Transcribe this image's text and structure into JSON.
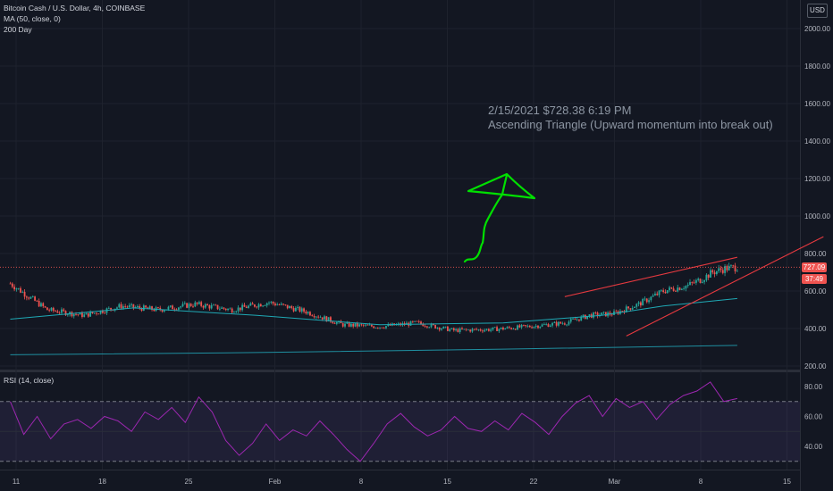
{
  "header": {
    "symbol": "Bitcoin Cash / U.S. Dollar, 4h, COINBASE",
    "indicator1": "MA (50, close, 0)",
    "indicator2": "200 Day",
    "rsi_label": "RSI (14, close)"
  },
  "currency_button": "USD",
  "last_price": "727.09",
  "countdown": "37:49",
  "annotation": {
    "line1": "2/15/2021 $728.38 6:19 PM",
    "line2": "Ascending Triangle (Upward momentum into break out)"
  },
  "colors": {
    "background": "#131722",
    "up": "#26a69a",
    "down": "#ef5350",
    "ma50": "#1fa9b5",
    "ma200": "#1f8fa0",
    "rsi": "#9c27b0",
    "trendline": "#e5393f",
    "drawing": "#00e000"
  },
  "chart_data": [
    {
      "type": "candlestick",
      "title": "Bitcoin Cash / U.S. Dollar, 4h, COINBASE",
      "ylim": [
        180,
        2150
      ],
      "y_ticks": [
        "2000.00",
        "1800.00",
        "1600.00",
        "1400.00",
        "1200.00",
        "1000.00",
        "800.00",
        "600.00",
        "400.00",
        "200.00"
      ],
      "x_ticks": [
        "11",
        "18",
        "25",
        "Feb",
        "8",
        "15",
        "22",
        "Mar",
        "8",
        "15"
      ],
      "close_path": [
        [
          0,
          640
        ],
        [
          3,
          500
        ],
        [
          6,
          470
        ],
        [
          9,
          520
        ],
        [
          12,
          500
        ],
        [
          15,
          530
        ],
        [
          18,
          500
        ],
        [
          21,
          540
        ],
        [
          24,
          490
        ],
        [
          27,
          420
        ],
        [
          30,
          410
        ],
        [
          33,
          430
        ],
        [
          36,
          390
        ],
        [
          39,
          395
        ],
        [
          42,
          410
        ],
        [
          45,
          430
        ],
        [
          47,
          470
        ],
        [
          49,
          480
        ],
        [
          51,
          530
        ],
        [
          53,
          600
        ],
        [
          55,
          630
        ],
        [
          56,
          660
        ],
        [
          57,
          700
        ],
        [
          58,
          720
        ],
        [
          59,
          727
        ]
      ],
      "series": [
        {
          "name": "MA (50, close, 0)",
          "values": [
            [
              0,
              450
            ],
            [
              10,
              510
            ],
            [
              20,
              470
            ],
            [
              30,
              420
            ],
            [
              40,
              430
            ],
            [
              48,
              470
            ],
            [
              53,
              520
            ],
            [
              59,
              560
            ]
          ]
        },
        {
          "name": "200 Day",
          "values": [
            [
              0,
              260
            ],
            [
              20,
              272
            ],
            [
              40,
              290
            ],
            [
              59,
              310
            ]
          ]
        }
      ],
      "trendlines": [
        {
          "from": [
            45,
            570
          ],
          "to": [
            59,
            780
          ]
        },
        {
          "from": [
            50,
            360
          ],
          "to": [
            66,
            890
          ]
        }
      ]
    },
    {
      "type": "line",
      "title": "RSI (14, close)",
      "ylim": [
        24,
        88
      ],
      "y_ticks": [
        "80.00",
        "60.00",
        "40.00"
      ],
      "bands": [
        30,
        70
      ],
      "values": [
        [
          0,
          70
        ],
        [
          1,
          48
        ],
        [
          2,
          60
        ],
        [
          3,
          45
        ],
        [
          4,
          55
        ],
        [
          5,
          58
        ],
        [
          6,
          52
        ],
        [
          7,
          60
        ],
        [
          8,
          57
        ],
        [
          9,
          50
        ],
        [
          10,
          63
        ],
        [
          11,
          58
        ],
        [
          12,
          66
        ],
        [
          13,
          56
        ],
        [
          14,
          73
        ],
        [
          15,
          63
        ],
        [
          16,
          44
        ],
        [
          17,
          34
        ],
        [
          18,
          42
        ],
        [
          19,
          55
        ],
        [
          20,
          44
        ],
        [
          21,
          51
        ],
        [
          22,
          47
        ],
        [
          23,
          57
        ],
        [
          24,
          48
        ],
        [
          25,
          38
        ],
        [
          26,
          30
        ],
        [
          27,
          42
        ],
        [
          28,
          55
        ],
        [
          29,
          62
        ],
        [
          30,
          53
        ],
        [
          31,
          47
        ],
        [
          32,
          51
        ],
        [
          33,
          60
        ],
        [
          34,
          52
        ],
        [
          35,
          50
        ],
        [
          36,
          57
        ],
        [
          37,
          51
        ],
        [
          38,
          62
        ],
        [
          39,
          56
        ],
        [
          40,
          48
        ],
        [
          41,
          60
        ],
        [
          42,
          69
        ],
        [
          43,
          74
        ],
        [
          44,
          60
        ],
        [
          45,
          72
        ],
        [
          46,
          66
        ],
        [
          47,
          70
        ],
        [
          48,
          58
        ],
        [
          49,
          68
        ],
        [
          50,
          74
        ],
        [
          51,
          77
        ],
        [
          52,
          83
        ],
        [
          53,
          70
        ],
        [
          54,
          72
        ]
      ]
    }
  ]
}
